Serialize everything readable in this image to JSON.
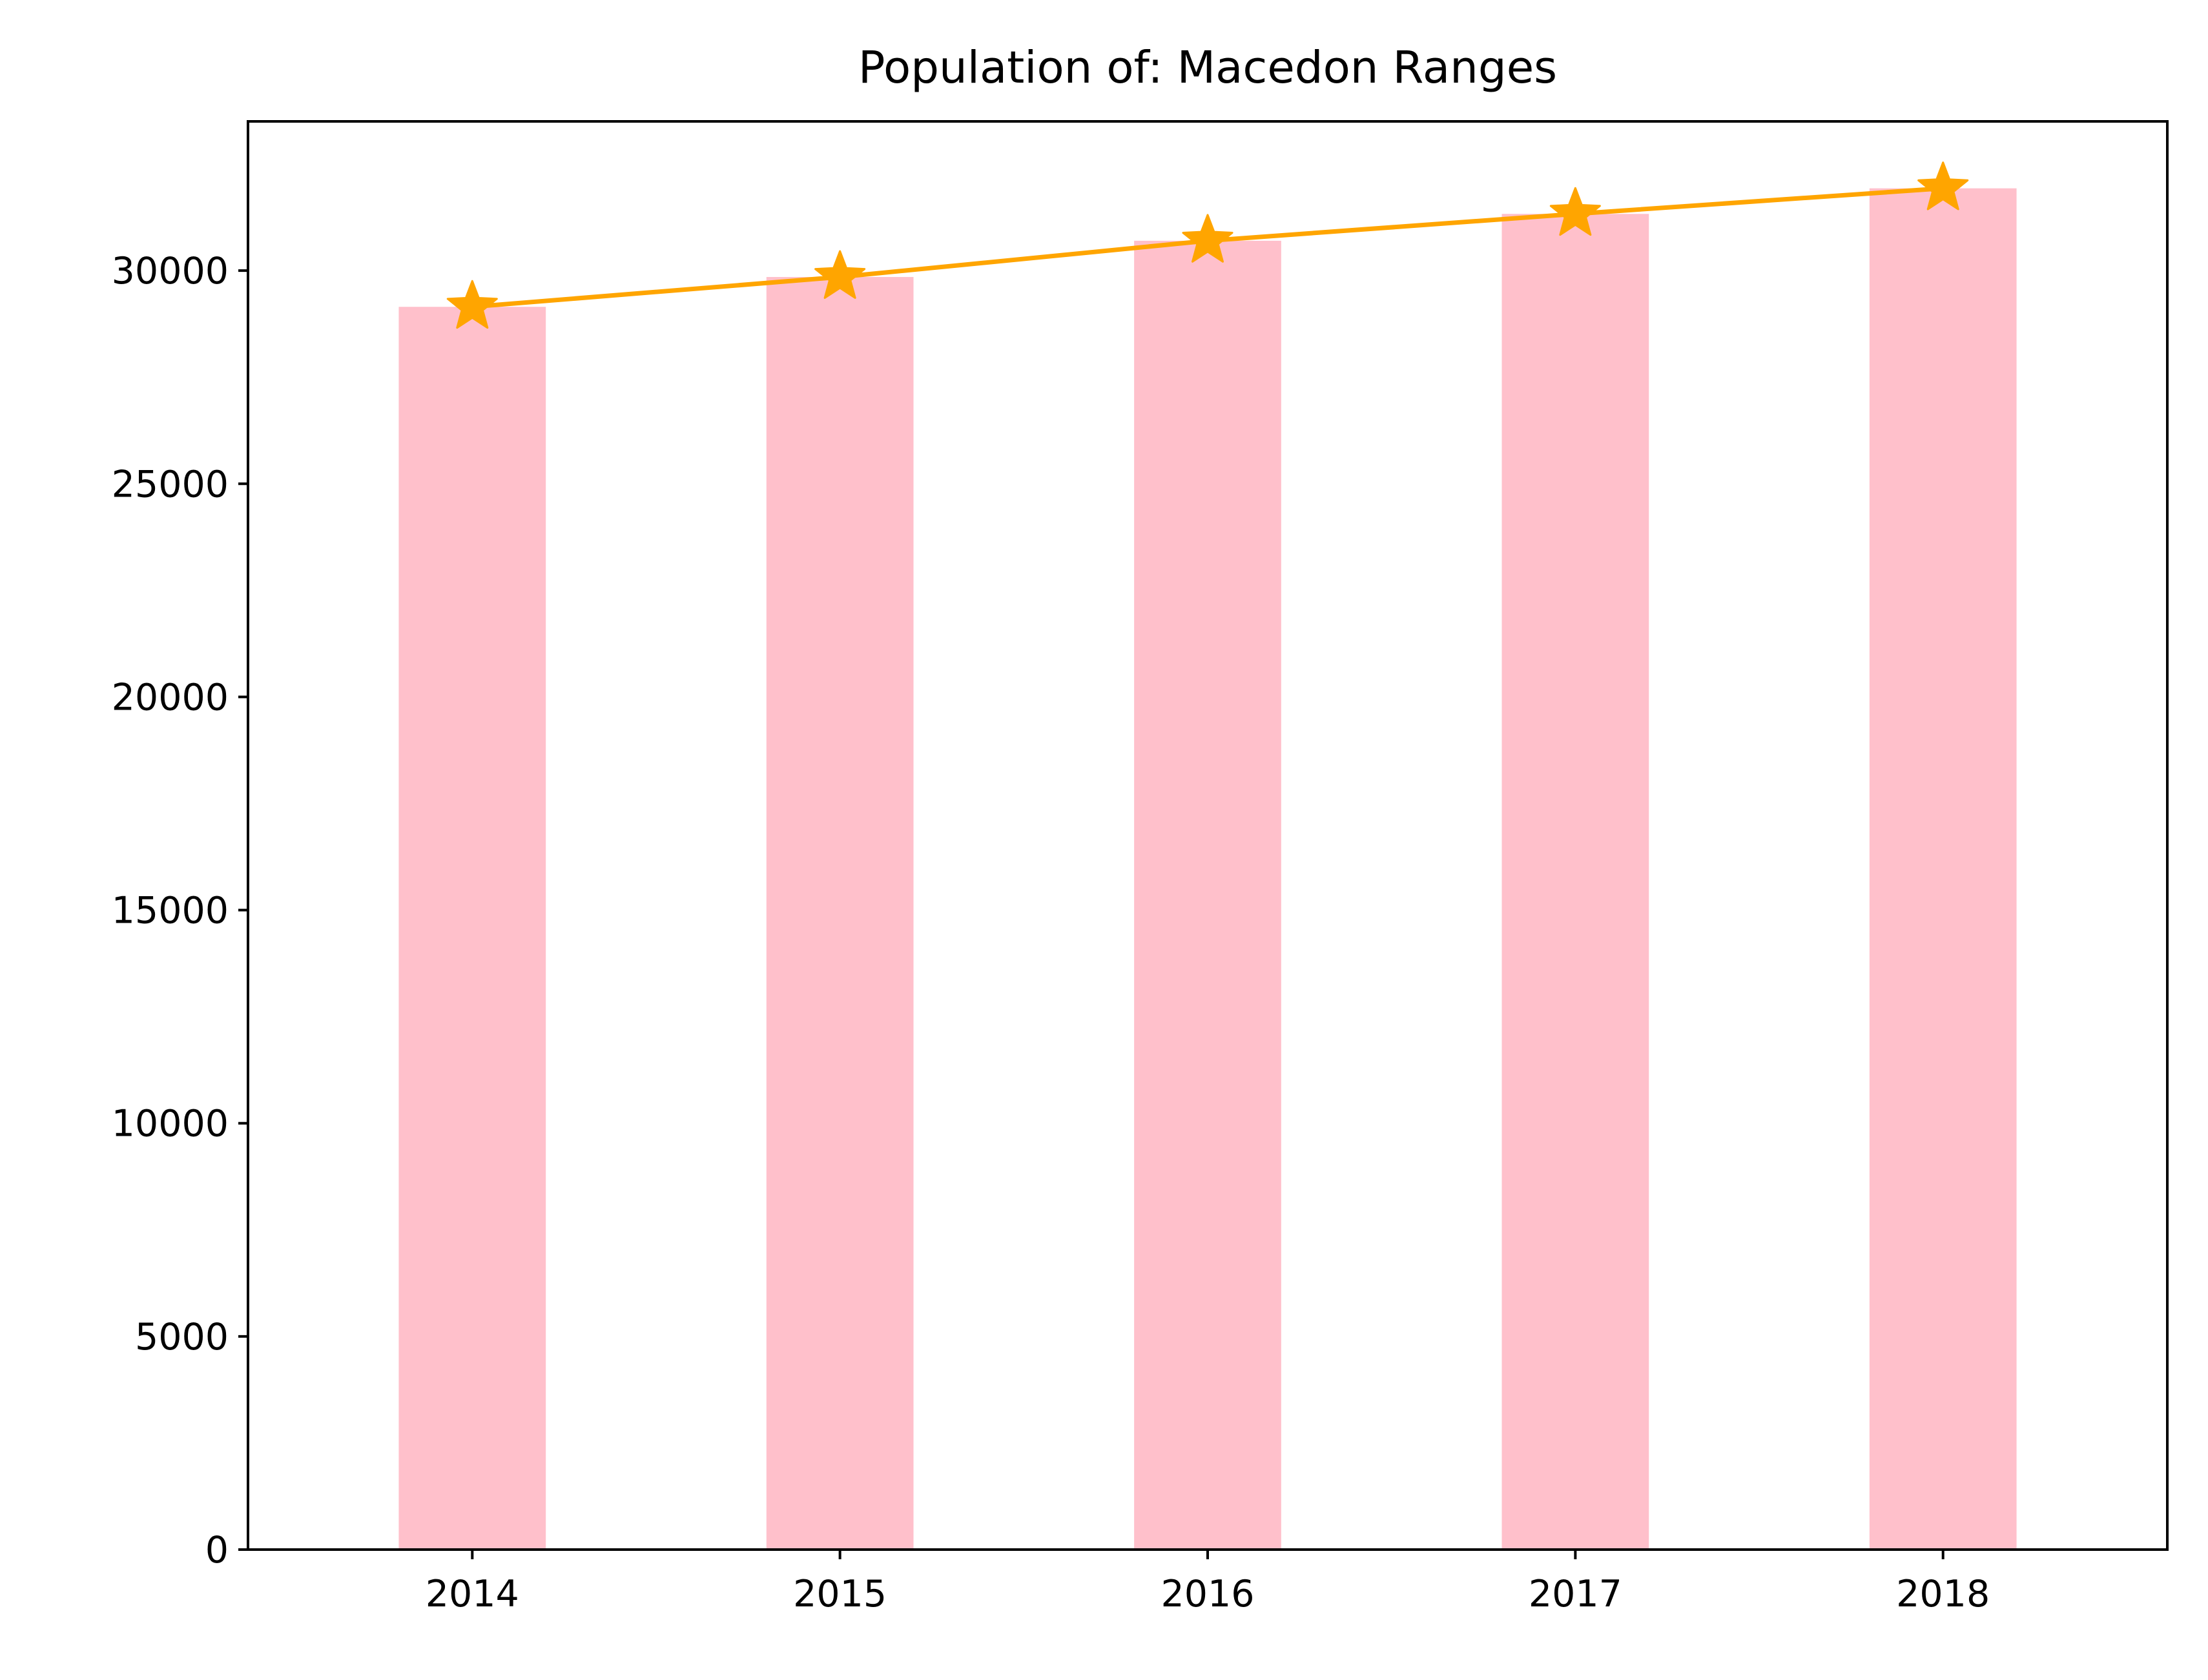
{
  "chart_data": {
    "type": "bar",
    "title": "Population of: Macedon Ranges",
    "xlabel": "",
    "ylabel": "",
    "categories": [
      "2014",
      "2015",
      "2016",
      "2017",
      "2018"
    ],
    "series": [
      {
        "type": "bar",
        "values": [
          29150,
          29850,
          30700,
          31330,
          31930
        ],
        "color": "#ffc0cb"
      },
      {
        "type": "line",
        "marker": "star",
        "values": [
          29150,
          29850,
          30700,
          31330,
          31930
        ],
        "color": "#ffa500"
      }
    ],
    "yticks": [
      "0",
      "5000",
      "10000",
      "15000",
      "20000",
      "25000",
      "30000"
    ],
    "ylim": [
      0,
      33500
    ],
    "grid": false,
    "legend": "none"
  }
}
